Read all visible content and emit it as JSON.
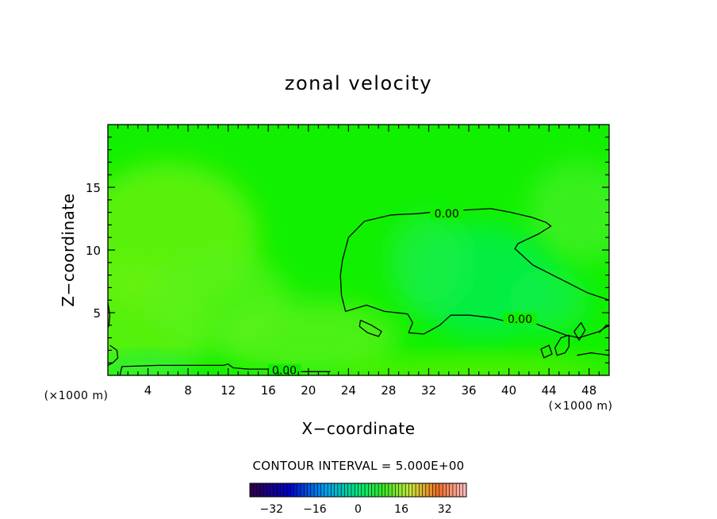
{
  "chart_data": {
    "type": "heatmap",
    "title": "zonal velocity",
    "xlabel": "X−coordinate",
    "ylabel": "Z−coordinate",
    "x_unit": "(×1000 m)",
    "x_unit_right": "(×1000 m)",
    "xlim": [
      0,
      50
    ],
    "ylim": [
      0,
      20
    ],
    "x_ticks": [
      4,
      8,
      12,
      16,
      20,
      24,
      28,
      32,
      36,
      40,
      44,
      48
    ],
    "y_ticks": [
      5,
      10,
      15
    ],
    "field_range": [
      -1.5,
      3
    ],
    "fill_patches": [
      {
        "cx": 6,
        "cy": 11,
        "rx": 9,
        "ry": 6,
        "value": 2.4
      },
      {
        "cx": 3,
        "cy": 4,
        "rx": 7,
        "ry": 5,
        "value": 2.2
      },
      {
        "cx": 11,
        "cy": 6,
        "rx": 7,
        "ry": 4,
        "value": 1.6
      },
      {
        "cx": 20,
        "cy": 3,
        "rx": 9,
        "ry": 3,
        "value": 1.8
      },
      {
        "cx": 47,
        "cy": 13,
        "rx": 5,
        "ry": 4,
        "value": 1.0
      },
      {
        "cx": 37.5,
        "cy": 7.5,
        "rx": 7,
        "ry": 4.5,
        "value": -1.3
      },
      {
        "cx": 32,
        "cy": 9,
        "rx": 4,
        "ry": 4,
        "value": -0.6
      },
      {
        "cx": 44,
        "cy": 6,
        "rx": 4,
        "ry": 2.5,
        "value": -0.9
      },
      {
        "cx": 37,
        "cy": 0.3,
        "rx": 14,
        "ry": 1.0,
        "value": 2.6
      },
      {
        "cx": 4,
        "cy": 0.6,
        "rx": 5,
        "ry": 0.8,
        "value": -1.2
      }
    ],
    "contours": [
      {
        "level": 0,
        "points": [
          [
            30.9,
            12.9
          ],
          [
            33.5,
            13.1
          ],
          [
            36,
            13.2
          ],
          [
            38.2,
            13.3
          ],
          [
            40.2,
            13.0
          ],
          [
            42.3,
            12.6
          ],
          [
            43.7,
            12.2
          ],
          [
            44.2,
            11.9
          ],
          [
            43.0,
            11.3
          ],
          [
            40.9,
            10.5
          ],
          [
            40.6,
            10.1
          ],
          [
            42.4,
            8.8
          ],
          [
            45.1,
            7.7
          ],
          [
            47.8,
            6.6
          ],
          [
            50,
            6.0
          ]
        ],
        "label": "0.00",
        "label_at": [
          32.3,
          12.9
        ]
      },
      {
        "level": 0,
        "points": [
          [
            30.9,
            12.9
          ],
          [
            28.3,
            12.8
          ],
          [
            25.6,
            12.3
          ],
          [
            24.0,
            11.0
          ],
          [
            23.4,
            9.2
          ],
          [
            23.2,
            8.0
          ],
          [
            23.3,
            6.4
          ],
          [
            23.7,
            5.1
          ],
          [
            25.8,
            5.6
          ],
          [
            27.6,
            5.1
          ],
          [
            29.9,
            4.9
          ],
          [
            30.4,
            4.2
          ],
          [
            30.0,
            3.4
          ],
          [
            31.5,
            3.3
          ],
          [
            33.1,
            4.0
          ],
          [
            34.2,
            4.8
          ],
          [
            36.1,
            4.8
          ],
          [
            38.2,
            4.6
          ],
          [
            40.3,
            4.2
          ],
          [
            42.4,
            4.2
          ],
          [
            44.4,
            3.6
          ],
          [
            45.7,
            3.2
          ],
          [
            47.0,
            3.0
          ],
          [
            49.0,
            3.5
          ],
          [
            50,
            4.0
          ]
        ],
        "label": "0.00",
        "label_at": [
          39.6,
          4.5
        ]
      },
      {
        "level": 0,
        "points": [
          [
            25.2,
            4.4
          ],
          [
            26.3,
            4.0
          ],
          [
            27.3,
            3.5
          ],
          [
            27.0,
            3.1
          ],
          [
            25.9,
            3.4
          ],
          [
            25.1,
            3.9
          ],
          [
            25.2,
            4.4
          ]
        ]
      },
      {
        "level": 0,
        "points": [
          [
            0.2,
            2.4
          ],
          [
            0.9,
            2.0
          ],
          [
            1.0,
            1.4
          ],
          [
            0.5,
            1.0
          ],
          [
            0,
            0.8
          ]
        ]
      },
      {
        "level": 0,
        "points": [
          [
            0,
            5.8
          ],
          [
            0.2,
            4.8
          ],
          [
            0.1,
            4.0
          ],
          [
            0,
            3.8
          ]
        ]
      },
      {
        "level": 0,
        "points": [
          [
            1.2,
            0.0
          ],
          [
            1.4,
            0.7
          ],
          [
            5.0,
            0.8
          ],
          [
            9.0,
            0.8
          ],
          [
            11.5,
            0.8
          ],
          [
            12.0,
            0.9
          ],
          [
            12.5,
            0.6
          ],
          [
            14.0,
            0.5
          ],
          [
            16.0,
            0.5
          ],
          [
            18.0,
            0.3
          ],
          [
            20.0,
            0.3
          ],
          [
            22.2,
            0.3
          ]
        ],
        "label": "0.00",
        "label_at": [
          16.1,
          0.4
        ]
      },
      {
        "level": 0,
        "points": [
          [
            44.6,
            2.2
          ],
          [
            45.2,
            3.0
          ],
          [
            46.0,
            3.2
          ],
          [
            46.0,
            2.3
          ],
          [
            45.6,
            1.8
          ],
          [
            44.8,
            1.6
          ],
          [
            44.6,
            2.2
          ]
        ]
      },
      {
        "level": 0,
        "points": [
          [
            46.5,
            3.5
          ],
          [
            47.2,
            4.2
          ],
          [
            47.6,
            3.6
          ],
          [
            47.0,
            2.8
          ],
          [
            46.5,
            3.5
          ]
        ]
      },
      {
        "level": 0,
        "points": [
          [
            43.2,
            2.1
          ],
          [
            44.0,
            2.4
          ],
          [
            44.3,
            1.7
          ],
          [
            43.5,
            1.4
          ],
          [
            43.2,
            2.1
          ]
        ]
      },
      {
        "level": 0,
        "points": [
          [
            46.8,
            1.6
          ],
          [
            48.2,
            1.8
          ],
          [
            50,
            1.6
          ]
        ]
      },
      {
        "level": 0,
        "points": [
          [
            49.0,
            3.4
          ],
          [
            49.6,
            3.9
          ],
          [
            50,
            3.9
          ]
        ]
      }
    ],
    "colorbar": {
      "title": "CONTOUR INTERVAL = 5.000E+00",
      "range": [
        -40,
        40
      ],
      "step": 1.25,
      "tick_labels": [
        "−32",
        "−16",
        "0",
        "16",
        "32"
      ],
      "tick_values": [
        -32,
        -16,
        0,
        16,
        32
      ]
    }
  }
}
